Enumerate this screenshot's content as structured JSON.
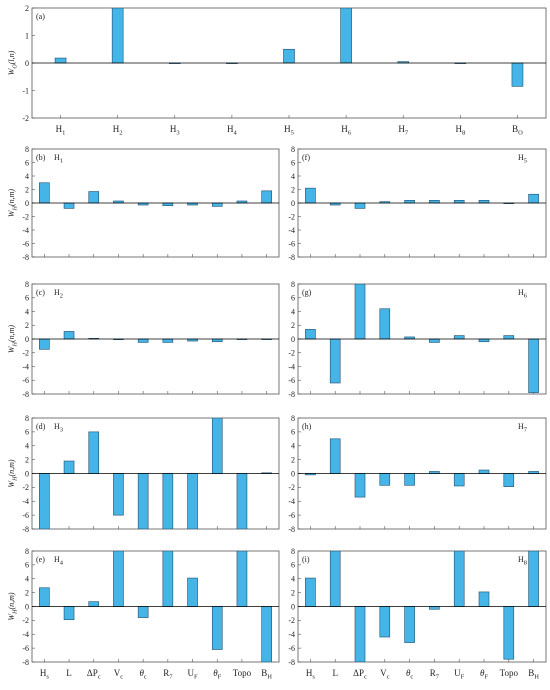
{
  "colors": {
    "bar": "#45b4e6",
    "bar_stroke": "#1f4f6e",
    "zero_line": "#000000",
    "grid": "#e6e6e6",
    "frame": "#555555"
  },
  "chart_data": [
    {
      "id": "a",
      "panel_label": "(a)",
      "corner_label": "",
      "corner_sub": "",
      "type": "bar",
      "ylim": [
        -2,
        2
      ],
      "yticks": [
        -2,
        -1,
        0,
        1,
        2
      ],
      "ylabel": {
        "base": "W",
        "sub": "O",
        "args": "(l,n)"
      },
      "show_xlabels": true,
      "categories": [
        {
          "base": "H",
          "sub": "1"
        },
        {
          "base": "H",
          "sub": "2"
        },
        {
          "base": "H",
          "sub": "3"
        },
        {
          "base": "H",
          "sub": "4"
        },
        {
          "base": "H",
          "sub": "5"
        },
        {
          "base": "H",
          "sub": "6"
        },
        {
          "base": "H",
          "sub": "7"
        },
        {
          "base": "H",
          "sub": "8"
        },
        {
          "base": "B",
          "sub": "O"
        }
      ],
      "values": [
        0.18,
        2.0,
        0.0,
        -0.02,
        0.5,
        2.0,
        0.05,
        0.0,
        -0.85
      ]
    },
    {
      "id": "b",
      "panel_label": "(b)",
      "corner_label": "H",
      "corner_sub": "1",
      "type": "bar",
      "ylim": [
        -8,
        8
      ],
      "yticks": [
        -8,
        -6,
        -4,
        -2,
        0,
        2,
        4,
        6,
        8
      ],
      "ylabel": {
        "base": "W",
        "sub": "H",
        "args": "(n,m)"
      },
      "show_xlabels": false,
      "values": [
        3.0,
        -0.8,
        1.7,
        0.3,
        -0.3,
        -0.4,
        -0.3,
        -0.5,
        0.3,
        1.8
      ]
    },
    {
      "id": "f",
      "panel_label": "(f)",
      "corner_label": "H",
      "corner_sub": "5",
      "type": "bar",
      "ylim": [
        -8,
        8
      ],
      "yticks": [
        -8,
        -6,
        -4,
        -2,
        0,
        2,
        4,
        6,
        8
      ],
      "show_xlabels": false,
      "values": [
        2.2,
        -0.3,
        -0.8,
        0.2,
        0.4,
        0.4,
        0.4,
        0.4,
        -0.1,
        1.3
      ]
    },
    {
      "id": "c",
      "panel_label": "(c)",
      "corner_label": "H",
      "corner_sub": "2",
      "type": "bar",
      "ylim": [
        -8,
        8
      ],
      "yticks": [
        -8,
        -6,
        -4,
        -2,
        0,
        2,
        4,
        6,
        8
      ],
      "ylabel": {
        "base": "W",
        "sub": "H",
        "args": "(n,m)"
      },
      "show_xlabels": false,
      "values": [
        -1.5,
        1.1,
        0.1,
        -0.1,
        -0.5,
        -0.5,
        -0.3,
        -0.4,
        0.0,
        0.0
      ]
    },
    {
      "id": "g",
      "panel_label": "(g)",
      "corner_label": "H",
      "corner_sub": "6",
      "type": "bar",
      "ylim": [
        -8,
        8
      ],
      "yticks": [
        -8,
        -6,
        -4,
        -2,
        0,
        2,
        4,
        6,
        8
      ],
      "show_xlabels": false,
      "values": [
        1.4,
        -6.4,
        8.0,
        4.4,
        0.3,
        -0.5,
        0.5,
        -0.4,
        0.5,
        -7.8
      ]
    },
    {
      "id": "d",
      "panel_label": "(d)",
      "corner_label": "H",
      "corner_sub": "3",
      "type": "bar",
      "ylim": [
        -8,
        8
      ],
      "yticks": [
        -8,
        -6,
        -4,
        -2,
        0,
        2,
        4,
        6,
        8
      ],
      "ylabel": {
        "base": "W",
        "sub": "H",
        "args": "(n,m)"
      },
      "show_xlabels": false,
      "values": [
        -8.0,
        1.8,
        6.0,
        -6.0,
        -8.0,
        -8.0,
        -8.0,
        8.0,
        -8.0,
        0.1
      ]
    },
    {
      "id": "h",
      "panel_label": "(h)",
      "corner_label": "H",
      "corner_sub": "7",
      "type": "bar",
      "ylim": [
        -8,
        8
      ],
      "yticks": [
        -8,
        -6,
        -4,
        -2,
        0,
        2,
        4,
        6,
        8
      ],
      "show_xlabels": false,
      "values": [
        -0.2,
        5.0,
        -3.4,
        -1.7,
        -1.7,
        0.3,
        -1.8,
        0.5,
        -1.9,
        0.3
      ]
    },
    {
      "id": "e",
      "panel_label": "(e)",
      "corner_label": "H",
      "corner_sub": "4",
      "type": "bar",
      "ylim": [
        -8,
        8
      ],
      "yticks": [
        -8,
        -6,
        -4,
        -2,
        0,
        2,
        4,
        6,
        8
      ],
      "ylabel": {
        "base": "W",
        "sub": "H",
        "args": "(n,m)"
      },
      "show_xlabels": true,
      "values": [
        2.7,
        -1.9,
        0.7,
        8.0,
        -1.6,
        8.0,
        4.1,
        -6.2,
        8.0,
        -8.0
      ]
    },
    {
      "id": "i",
      "panel_label": "(i)",
      "corner_label": "H",
      "corner_sub": "8",
      "type": "bar",
      "ylim": [
        -8,
        8
      ],
      "yticks": [
        -8,
        -6,
        -4,
        -2,
        0,
        2,
        4,
        6,
        8
      ],
      "show_xlabels": true,
      "values": [
        4.1,
        8.0,
        -8.0,
        -4.4,
        -5.2,
        -0.4,
        8.0,
        2.1,
        -7.6,
        8.0
      ]
    }
  ],
  "shared_categories": [
    {
      "base": "H",
      "sub": "s",
      "greek": false
    },
    {
      "base": "L",
      "sub": "",
      "greek": false
    },
    {
      "base": "ΔP",
      "sub": "c",
      "greek": false
    },
    {
      "base": "V",
      "sub": "c",
      "greek": false
    },
    {
      "base": "θ",
      "sub": "c",
      "greek": true
    },
    {
      "base": "R",
      "sub": "7",
      "greek": false
    },
    {
      "base": "U",
      "sub": "F",
      "greek": false
    },
    {
      "base": "θ",
      "sub": "F",
      "greek": true
    },
    {
      "base": "Topo",
      "sub": "",
      "greek": false
    },
    {
      "base": "B",
      "sub": "H",
      "greek": false
    }
  ]
}
